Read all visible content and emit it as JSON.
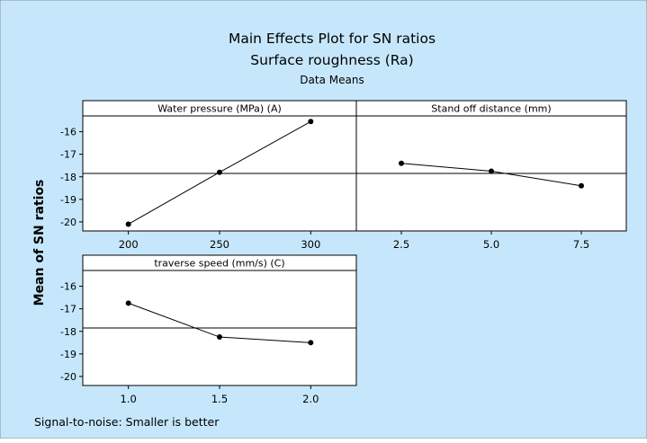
{
  "colors": {
    "background": "#c6e7fb",
    "panel_background": "#ffffff",
    "line": "#000000",
    "border": "#909090"
  },
  "chart_data": {
    "type": "line",
    "title": "Main Effects Plot for SN ratios",
    "subtitle": "Surface roughness (Ra)",
    "subtitle2": "Data Means",
    "ylabel": "Mean of SN ratios",
    "footnote": "Signal-to-noise: Smaller is better",
    "ylim": [
      -20.4,
      -15.3
    ],
    "yticks": [
      -16,
      -17,
      -18,
      -19,
      -20
    ],
    "reference_line": -17.85,
    "grid": false,
    "panels": [
      {
        "label": "Water pressure (MPa) (A)",
        "categories": [
          "200",
          "250",
          "300"
        ],
        "values": [
          -20.1,
          -17.8,
          -15.55
        ]
      },
      {
        "label": "Stand off distance (mm)",
        "categories": [
          "2.5",
          "5.0",
          "7.5"
        ],
        "values": [
          -17.4,
          -17.75,
          -18.4
        ]
      },
      {
        "label": "traverse speed  (mm/s) (C)",
        "categories": [
          "1.0",
          "1.5",
          "2.0"
        ],
        "values": [
          -16.75,
          -18.25,
          -18.5
        ]
      }
    ]
  }
}
